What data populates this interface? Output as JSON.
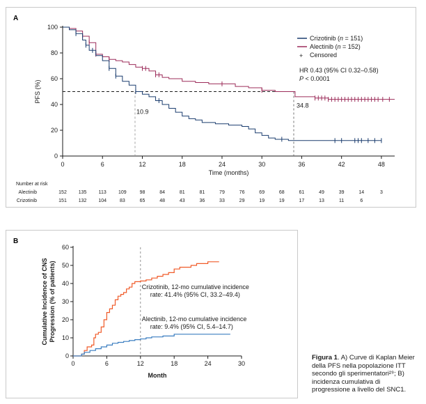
{
  "chart_data": [
    {
      "panel": "A",
      "type": "line",
      "title": "",
      "xlabel": "Time (months)",
      "ylabel": "PFS (%)",
      "xlim": [
        0,
        50
      ],
      "ylim": [
        0,
        100
      ],
      "xticks": [
        0,
        6,
        12,
        18,
        24,
        30,
        36,
        42,
        48
      ],
      "yticks": [
        0,
        20,
        40,
        60,
        80,
        100
      ],
      "grid": false,
      "legend_position": "top-right",
      "legend": {
        "crizotinib": {
          "label": "Crizotinib (",
          "n_italic": "n",
          "count": " = 151)"
        },
        "alectinib": {
          "label": "Alectinib (",
          "n_italic": "n",
          "count": " = 152)"
        },
        "censored": "Censored"
      },
      "hr_text": "HR 0.43 (95% CI 0.32–0.58)",
      "p_text_italic": "P",
      "p_text": " < 0.0001",
      "median_reference_y": 50,
      "medians": [
        {
          "series": "crizotinib",
          "x": 10.9,
          "label": "10.9"
        },
        {
          "series": "alectinib",
          "x": 34.8,
          "label": "34.8"
        }
      ],
      "series": [
        {
          "name": "Alectinib",
          "color": "#9c2c5a",
          "steps": [
            [
              0,
              100
            ],
            [
              1,
              99
            ],
            [
              2,
              97
            ],
            [
              3,
              93
            ],
            [
              4,
              88
            ],
            [
              5,
              79
            ],
            [
              6,
              77
            ],
            [
              7,
              75
            ],
            [
              8,
              74
            ],
            [
              9,
              73
            ],
            [
              10,
              71
            ],
            [
              11,
              69
            ],
            [
              12,
              68
            ],
            [
              13,
              66
            ],
            [
              14,
              63
            ],
            [
              15,
              61
            ],
            [
              16,
              60
            ],
            [
              18,
              58
            ],
            [
              20,
              57
            ],
            [
              22,
              56
            ],
            [
              24,
              56
            ],
            [
              26,
              54
            ],
            [
              28,
              53
            ],
            [
              30,
              51
            ],
            [
              32,
              50
            ],
            [
              34,
              50
            ],
            [
              35,
              46
            ],
            [
              37,
              46
            ],
            [
              38,
              45
            ],
            [
              40,
              44
            ],
            [
              50,
              44
            ]
          ],
          "censored": [
            3,
            4,
            5,
            7,
            12,
            12.5,
            14,
            14.5,
            24,
            30,
            38,
            38.5,
            39,
            39.5,
            40,
            40.5,
            41,
            41.5,
            42,
            42.5,
            43,
            43.5,
            44,
            44.5,
            45,
            45.5,
            46,
            46.5,
            47,
            47.5,
            48.2,
            49.2
          ]
        },
        {
          "name": "Crizotinib",
          "color": "#1a3c6e",
          "steps": [
            [
              0,
              100
            ],
            [
              1,
              98
            ],
            [
              2,
              95
            ],
            [
              3,
              90
            ],
            [
              3.5,
              86
            ],
            [
              4,
              82
            ],
            [
              5,
              78
            ],
            [
              6,
              74
            ],
            [
              7,
              68
            ],
            [
              8,
              62
            ],
            [
              9,
              58
            ],
            [
              10,
              55
            ],
            [
              11,
              50
            ],
            [
              12,
              48
            ],
            [
              13,
              46
            ],
            [
              14,
              43
            ],
            [
              15,
              40
            ],
            [
              16,
              37
            ],
            [
              17,
              34
            ],
            [
              18,
              31
            ],
            [
              19,
              29
            ],
            [
              20,
              28
            ],
            [
              21,
              26
            ],
            [
              23,
              25
            ],
            [
              25,
              24
            ],
            [
              27,
              23
            ],
            [
              28,
              21
            ],
            [
              29,
              18
            ],
            [
              30,
              16
            ],
            [
              31,
              14
            ],
            [
              32,
              13
            ],
            [
              33,
              13
            ],
            [
              34,
              12
            ],
            [
              36,
              12
            ],
            [
              48,
              12
            ]
          ],
          "censored": [
            2,
            3.5,
            4.5,
            7,
            8,
            11,
            14.5,
            33,
            41,
            42,
            44,
            44.5,
            45,
            46,
            47,
            48
          ]
        }
      ],
      "risk_table": {
        "title": "Number at risk",
        "times": [
          0,
          3,
          6,
          9,
          12,
          15,
          18,
          21,
          24,
          27,
          30,
          33,
          36,
          39,
          42,
          45,
          48
        ],
        "rows": [
          {
            "label": "Alectinib",
            "values": [
              "152",
              "135",
              "113",
              "109",
              "98",
              "84",
              "81",
              "81",
              "79",
              "76",
              "69",
              "68",
              "61",
              "49",
              "39",
              "14",
              "3"
            ]
          },
          {
            "label": "Crizotinib",
            "values": [
              "151",
              "132",
              "104",
              "83",
              "65",
              "48",
              "43",
              "36",
              "33",
              "29",
              "19",
              "19",
              "17",
              "13",
              "11",
              "6",
              ""
            ]
          }
        ]
      }
    },
    {
      "panel": "B",
      "type": "line",
      "title": "",
      "xlabel": "Month",
      "ylabel": "Cumulative Incidence of CNS Progression (% of patients)",
      "ylabel_lines": [
        "Cumulative Incidence of CNS",
        "Progression (% of patients)"
      ],
      "xlim": [
        0,
        30
      ],
      "ylim": [
        0,
        60
      ],
      "xticks": [
        0,
        6,
        12,
        18,
        24,
        30
      ],
      "yticks": [
        0,
        10,
        20,
        30,
        40,
        50,
        60
      ],
      "grid": false,
      "reference_x": 12,
      "series": [
        {
          "name": "Crizotinib",
          "color": "#f05a28",
          "annotation": [
            "Crizotinib, 12-mo cumulative incidence",
            "rate: 41.4% (95% CI, 33.2–49.4)"
          ],
          "steps": [
            [
              0,
              0
            ],
            [
              1.5,
              1
            ],
            [
              2,
              3
            ],
            [
              2.5,
              5
            ],
            [
              3.3,
              6
            ],
            [
              3.7,
              10
            ],
            [
              4,
              12
            ],
            [
              4.5,
              13
            ],
            [
              5,
              16
            ],
            [
              5.5,
              20
            ],
            [
              6,
              24
            ],
            [
              6.5,
              26
            ],
            [
              7,
              28
            ],
            [
              7.5,
              31
            ],
            [
              8,
              33
            ],
            [
              8.5,
              34
            ],
            [
              9,
              35
            ],
            [
              9.5,
              37
            ],
            [
              10,
              38
            ],
            [
              10.5,
              40
            ],
            [
              11,
              41
            ],
            [
              12,
              41.4
            ],
            [
              13,
              42
            ],
            [
              14,
              43
            ],
            [
              15,
              44
            ],
            [
              16,
              45
            ],
            [
              17,
              46
            ],
            [
              18,
              48
            ],
            [
              19,
              49
            ],
            [
              20,
              49
            ],
            [
              21,
              50
            ],
            [
              22,
              51
            ],
            [
              24,
              52
            ],
            [
              26,
              52
            ]
          ]
        },
        {
          "name": "Alectinib",
          "color": "#3a7dc0",
          "annotation": [
            "Alectinib, 12-mo cumulative incidence",
            "rate: 9.4% (95% CI, 5.4–14.7)"
          ],
          "steps": [
            [
              0,
              0
            ],
            [
              1.5,
              1
            ],
            [
              2,
              2
            ],
            [
              3,
              3
            ],
            [
              4,
              4
            ],
            [
              5,
              5
            ],
            [
              6,
              6
            ],
            [
              7,
              7
            ],
            [
              8,
              7.5
            ],
            [
              9,
              8
            ],
            [
              10,
              8.5
            ],
            [
              11,
              9
            ],
            [
              12,
              9.4
            ],
            [
              13,
              10
            ],
            [
              14,
              10.5
            ],
            [
              16,
              11
            ],
            [
              18,
              12
            ],
            [
              20,
              12
            ],
            [
              22,
              12
            ],
            [
              24,
              12
            ],
            [
              28,
              12
            ]
          ]
        }
      ]
    }
  ],
  "caption": {
    "bold": "Figura 1",
    "text": ". A) Curve di Kaplan Meier della PFS nella popolazione ITT secondo gli sperimentatori²⁹; B) incidenza cumulativa di progressione a livello del SNC1."
  }
}
